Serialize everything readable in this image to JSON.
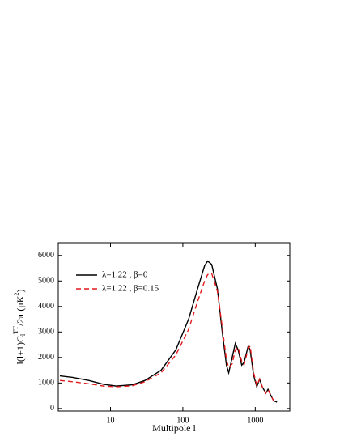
{
  "chart_data": {
    "type": "line",
    "xlabel": "Multipole l",
    "ylabel": [
      "l(l+1)C",
      "l",
      "TT",
      "/2π (μK",
      "2",
      ")"
    ],
    "xscale": "log",
    "xlim": [
      1.9,
      3000
    ],
    "xticks": [
      10,
      100,
      1000
    ],
    "ylim": [
      -100,
      6500
    ],
    "yticks": [
      0,
      1000,
      2000,
      3000,
      4000,
      5000,
      6000
    ],
    "legend": "upper left",
    "x": [
      2,
      3,
      5,
      8,
      12,
      20,
      30,
      50,
      80,
      120,
      160,
      200,
      220,
      250,
      300,
      350,
      400,
      430,
      480,
      530,
      580,
      650,
      700,
      800,
      850,
      950,
      1050,
      1150,
      1250,
      1400,
      1500,
      1650,
      1800,
      2000
    ],
    "series": [
      {
        "name": "λ=1.22 , β=0",
        "color": "#000000",
        "dash": false,
        "values": [
          1280,
          1220,
          1100,
          950,
          880,
          930,
          1100,
          1500,
          2300,
          3500,
          4700,
          5600,
          5780,
          5650,
          4700,
          3000,
          1700,
          1400,
          2000,
          2550,
          2300,
          1700,
          1800,
          2450,
          2300,
          1300,
          850,
          1150,
          850,
          600,
          750,
          500,
          300,
          250
        ]
      },
      {
        "name": "λ=1.22 , β=0.15",
        "color": "#e31a1c",
        "dash": true,
        "values": [
          1100,
          1050,
          970,
          880,
          850,
          890,
          1050,
          1400,
          2100,
          3100,
          4200,
          5000,
          5250,
          5300,
          4600,
          3200,
          1900,
          1600,
          1750,
          2300,
          2400,
          1850,
          1700,
          2350,
          2450,
          1400,
          900,
          1150,
          850,
          600,
          750,
          500,
          300,
          250
        ]
      }
    ]
  }
}
